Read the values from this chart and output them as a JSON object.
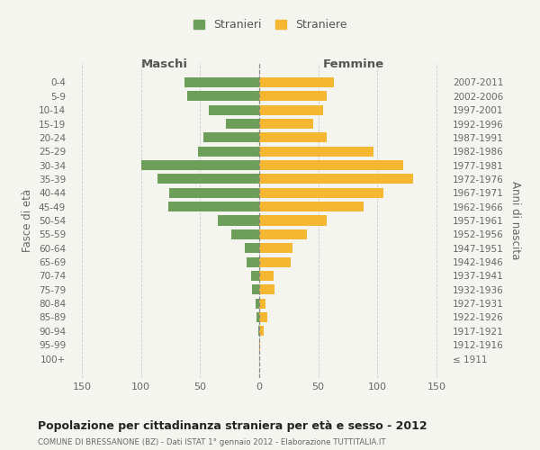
{
  "age_groups": [
    "100+",
    "95-99",
    "90-94",
    "85-89",
    "80-84",
    "75-79",
    "70-74",
    "65-69",
    "60-64",
    "55-59",
    "50-54",
    "45-49",
    "40-44",
    "35-39",
    "30-34",
    "25-29",
    "20-24",
    "15-19",
    "10-14",
    "5-9",
    "0-4"
  ],
  "birth_years": [
    "≤ 1911",
    "1912-1916",
    "1917-1921",
    "1922-1926",
    "1927-1931",
    "1932-1936",
    "1937-1941",
    "1942-1946",
    "1947-1951",
    "1952-1956",
    "1957-1961",
    "1962-1966",
    "1967-1971",
    "1972-1976",
    "1977-1981",
    "1982-1986",
    "1987-1991",
    "1992-1996",
    "1997-2001",
    "2002-2006",
    "2007-2011"
  ],
  "maschi": [
    0,
    0,
    1,
    2,
    3,
    6,
    7,
    11,
    12,
    24,
    35,
    77,
    76,
    86,
    100,
    52,
    47,
    28,
    43,
    61,
    63
  ],
  "femmine": [
    0,
    1,
    4,
    7,
    5,
    13,
    12,
    27,
    28,
    40,
    57,
    88,
    105,
    130,
    122,
    97,
    57,
    46,
    54,
    57,
    63
  ],
  "maschi_color": "#6d9e5a",
  "femmine_color": "#f5b731",
  "background_color": "#f5f5ef",
  "grid_color": "#cccccc",
  "title": "Popolazione per cittadinanza straniera per età e sesso - 2012",
  "subtitle": "COMUNE DI BRESSANONE (BZ) - Dati ISTAT 1° gennaio 2012 - Elaborazione TUTTITALIA.IT",
  "xlabel_left": "Maschi",
  "xlabel_right": "Femmine",
  "ylabel_left": "Fasce di età",
  "ylabel_right": "Anni di nascita",
  "legend_stranieri": "Stranieri",
  "legend_straniere": "Straniere",
  "xlim": 160,
  "dashed_line_color": "#888888",
  "xticks": [
    -150,
    -100,
    -50,
    0,
    50,
    100,
    150
  ]
}
